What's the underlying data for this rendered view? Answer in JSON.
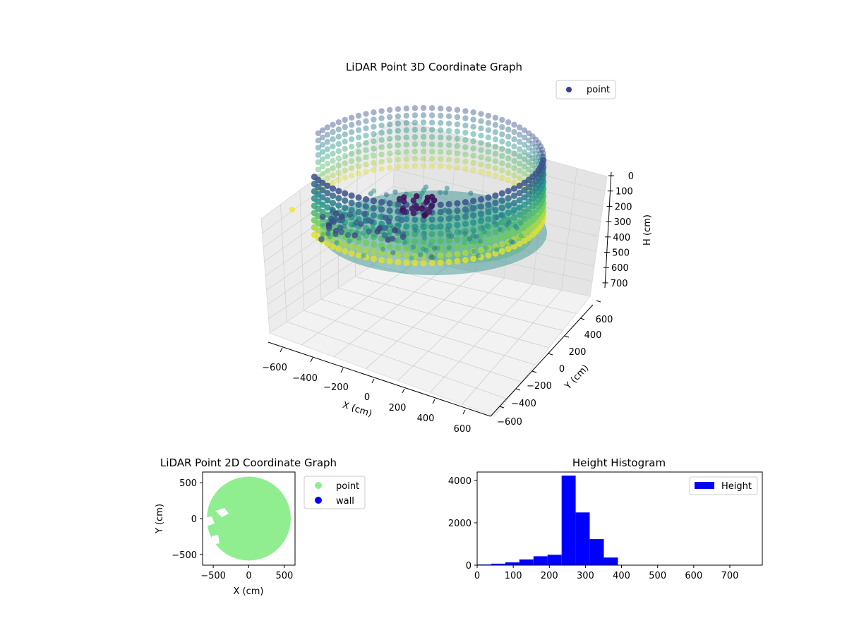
{
  "chart_data": [
    {
      "type": "scatter",
      "title": "LiDAR Point 3D Coordinate Graph",
      "xlabel": "X (cm)",
      "ylabel": "Y (cm)",
      "zlabel": "H (cm)",
      "xlim": [
        -700,
        700
      ],
      "ylim": [
        -700,
        700
      ],
      "zlim": [
        0,
        780
      ],
      "z_inverted": true,
      "x_ticks": [
        "−600",
        "−400",
        "−200",
        "0",
        "200",
        "400",
        "600"
      ],
      "y_ticks": [
        "−600",
        "−400",
        "−200",
        "0",
        "200",
        "400",
        "600"
      ],
      "z_ticks": [
        "0",
        "100",
        "200",
        "300",
        "400",
        "500",
        "600",
        "700"
      ],
      "legend": {
        "position": "top-right",
        "entries": [
          {
            "label": "point",
            "color": "#3b3f8c"
          }
        ]
      },
      "colormap": "viridis",
      "grid": true,
      "ring": {
        "radius_cm": 560,
        "height_top_cm": 0,
        "height_bottom_cm": 780
      },
      "series": [
        {
          "name": "point"
        }
      ]
    },
    {
      "type": "scatter",
      "title": "LiDAR Point 2D Coordinate Graph",
      "xlabel": "X (cm)",
      "ylabel": "Y (cm)",
      "xlim": [
        -650,
        650
      ],
      "ylim": [
        -650,
        650
      ],
      "x_ticks": [
        "−500",
        "0",
        "500"
      ],
      "y_ticks": [
        "500",
        "0",
        "−500"
      ],
      "legend": {
        "position": "outside-right",
        "entries": [
          {
            "label": "point",
            "color": "#90ee90"
          },
          {
            "label": "wall",
            "color": "#0000ff"
          }
        ]
      },
      "series": [
        {
          "name": "point",
          "color": "#90ee90",
          "radius_cm": 590,
          "center": [
            0,
            0
          ]
        },
        {
          "name": "wall",
          "color": "#0000ff"
        }
      ]
    },
    {
      "type": "bar",
      "title": "Height Histogram",
      "xlim": [
        0,
        790
      ],
      "ylim": [
        0,
        4400
      ],
      "x_ticks": [
        "0",
        "100",
        "200",
        "300",
        "400",
        "500",
        "600",
        "700"
      ],
      "y_ticks": [
        "0",
        "2000",
        "4000"
      ],
      "legend": {
        "position": "top-right",
        "entries": [
          {
            "label": "Height",
            "color": "#0000ff"
          }
        ]
      },
      "bar_color": "#0000ff",
      "bin_width": 39,
      "bin_starts": [
        0,
        39,
        78,
        117,
        156,
        195,
        234,
        273,
        312,
        351,
        390,
        429,
        468,
        507,
        546,
        585,
        624,
        663,
        702,
        741
      ],
      "counts": [
        30,
        70,
        130,
        270,
        420,
        490,
        4230,
        2490,
        1230,
        360,
        0,
        0,
        0,
        0,
        0,
        0,
        0,
        0,
        0,
        5
      ],
      "series": [
        {
          "name": "Height"
        }
      ]
    }
  ]
}
